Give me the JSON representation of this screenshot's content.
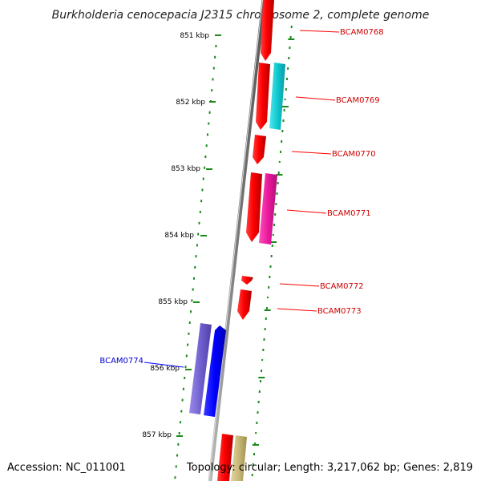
{
  "title": "Burkholderia cenocepacia J2315 chromosome 2, complete genome",
  "accession": "Accession: NC_011001",
  "summary": "Topology: circular; Length: 3,217,062 bp; Genes: 2,819",
  "ticks": [
    "851 kbp",
    "852 kbp",
    "853 kbp",
    "854 kbp",
    "855 kbp",
    "856 kbp",
    "857 kbp"
  ],
  "genes": [
    {
      "name": "BCAM0768",
      "strand": "forward",
      "color": "#ff0000"
    },
    {
      "name": "BCAM0769",
      "strand": "forward",
      "color": "#ff0000"
    },
    {
      "name": "BCAM0770",
      "strand": "forward",
      "color": "#ff0000"
    },
    {
      "name": "BCAM0771",
      "strand": "forward",
      "color": "#ff0000"
    },
    {
      "name": "BCAM0772",
      "strand": "forward",
      "color": "#ff0000"
    },
    {
      "name": "BCAM0773",
      "strand": "forward",
      "color": "#ff0000"
    },
    {
      "name": "BCAM0774",
      "strand": "reverse",
      "color": "#0000ff"
    }
  ],
  "colors": {
    "forward_gene": "#ff0000",
    "reverse_gene": "#0000ff",
    "cds_cyan": "#10c8d0",
    "cds_magenta": "#e8189a",
    "cds_purple": "#7060d0",
    "cds_khaki": "#c8b878",
    "backbone": "#8a8a8a",
    "ruler_green": "#1a8a1a"
  }
}
